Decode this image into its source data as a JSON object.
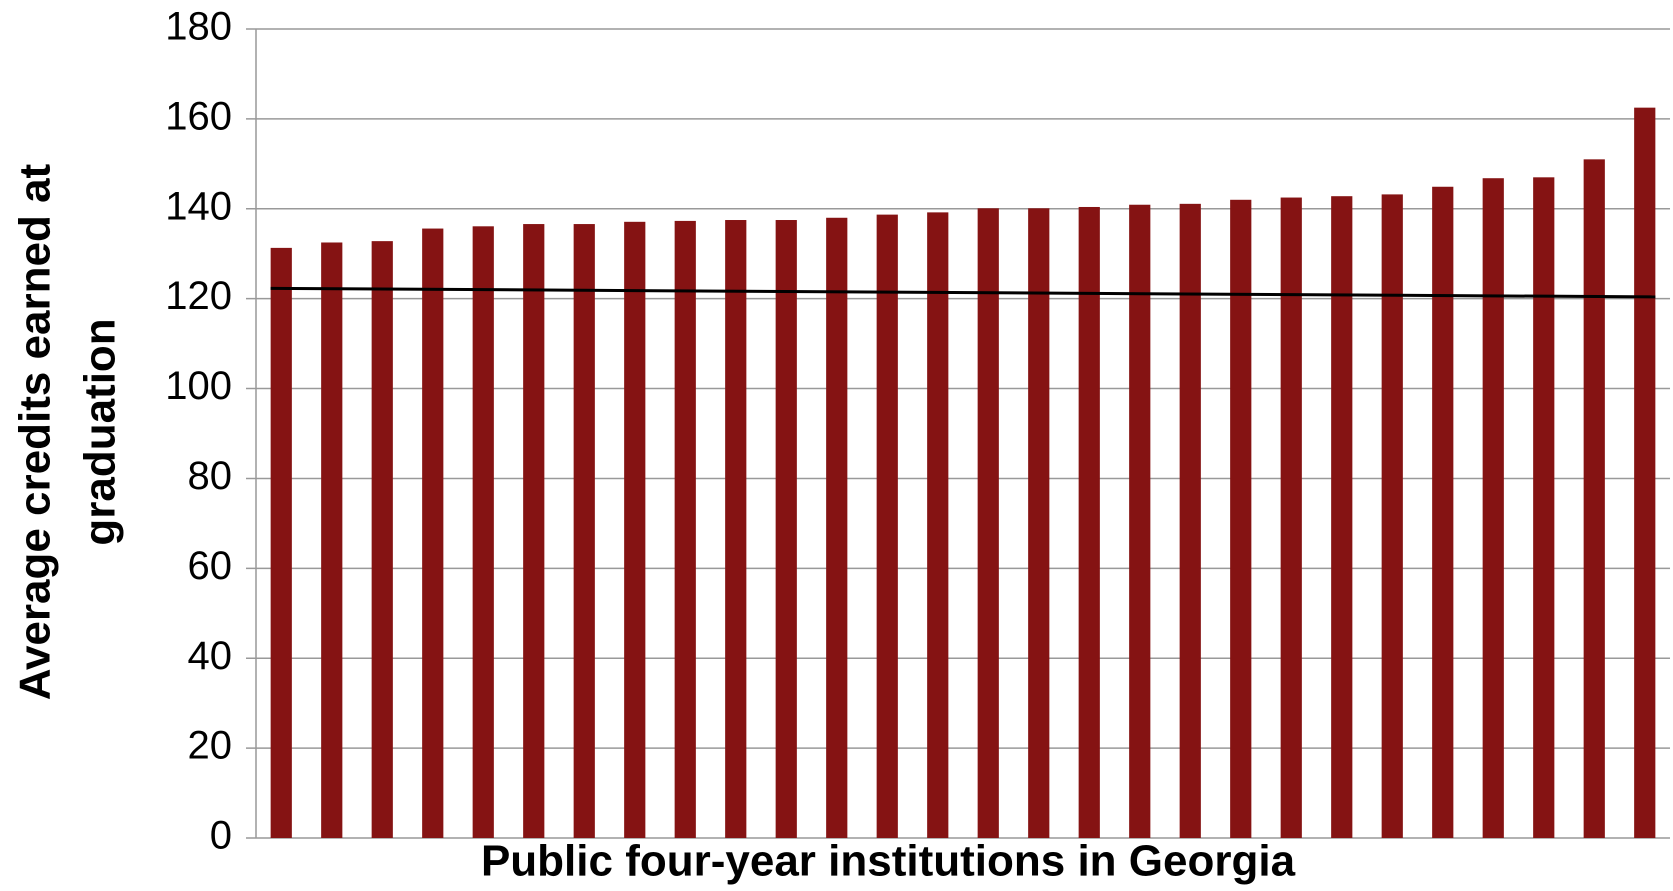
{
  "chart_data": {
    "type": "bar",
    "y_axis_label": [
      "Average credits earned at",
      "graduation"
    ],
    "x_axis_label": "Public four-year institutions in Georgia",
    "categories": [
      null,
      null,
      null,
      null,
      null,
      null,
      null,
      null,
      null,
      null,
      null,
      null,
      null,
      null,
      null,
      null,
      null,
      null,
      null,
      null,
      null,
      null,
      null,
      null,
      null,
      null,
      null,
      null
    ],
    "values": [
      131.3,
      132.5,
      132.8,
      135.6,
      136.1,
      136.6,
      136.6,
      137.1,
      137.3,
      137.5,
      137.5,
      138,
      138.7,
      139.2,
      140.1,
      140.1,
      140.4,
      140.9,
      141.1,
      142,
      142.5,
      142.8,
      143.2,
      144.9,
      146.8,
      147,
      151,
      162.5
    ],
    "color": "#851313",
    "trend_line": {
      "start": 122.3,
      "end": 120.4,
      "color": "#000000"
    },
    "ylim": [
      0,
      180
    ],
    "yticks": [
      0,
      20,
      40,
      60,
      80,
      100,
      120,
      140,
      160,
      180
    ],
    "grid": true
  }
}
